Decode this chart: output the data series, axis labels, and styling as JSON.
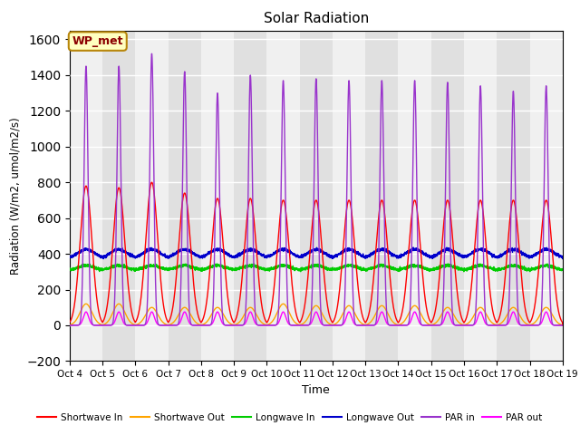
{
  "title": "Solar Radiation",
  "ylabel": "Radiation (W/m2, umol/m2/s)",
  "xlabel": "Time",
  "ylim": [
    -200,
    1650
  ],
  "label_text": "WP_met",
  "x_tick_labels": [
    "Oct 4",
    "Oct 5",
    "Oct 6",
    "Oct 7",
    "Oct 8",
    "Oct 9",
    "Oct 10",
    "Oct 11",
    "Oct 12",
    "Oct 13",
    "Oct 14",
    "Oct 15",
    "Oct 16",
    "Oct 17",
    "Oct 18",
    "Oct 19"
  ],
  "series": {
    "shortwave_in": {
      "color": "#ff0000",
      "label": "Shortwave In"
    },
    "shortwave_out": {
      "color": "#ffa500",
      "label": "Shortwave Out"
    },
    "longwave_in": {
      "color": "#00cc00",
      "label": "Longwave In"
    },
    "longwave_out": {
      "color": "#0000cc",
      "label": "Longwave Out"
    },
    "par_in": {
      "color": "#9933cc",
      "label": "PAR in"
    },
    "par_out": {
      "color": "#ff00ff",
      "label": "PAR out"
    }
  },
  "num_days": 15,
  "points_per_day": 288,
  "shortwave_in_peaks": [
    780,
    770,
    800,
    740,
    710,
    710,
    700,
    700,
    700,
    700,
    700,
    700,
    700,
    700,
    700
  ],
  "shortwave_out_peaks": [
    120,
    120,
    100,
    100,
    100,
    100,
    120,
    110,
    110,
    110,
    110,
    100,
    100,
    100,
    100
  ],
  "par_in_peaks": [
    1450,
    1450,
    1520,
    1420,
    1300,
    1400,
    1370,
    1380,
    1370,
    1370,
    1370,
    1360,
    1340,
    1310,
    1340
  ],
  "par_out_peaks": [
    75,
    75,
    75,
    75,
    75,
    75,
    75,
    75,
    75,
    75,
    75,
    75,
    75,
    75,
    75
  ],
  "longwave_in_base": 310,
  "longwave_out_base": 375,
  "longwave_in_amp": 25,
  "longwave_out_amp": 50,
  "stripe_light": "#f0f0f0",
  "stripe_dark": "#e0e0e0",
  "plot_bg": "#ffffff"
}
